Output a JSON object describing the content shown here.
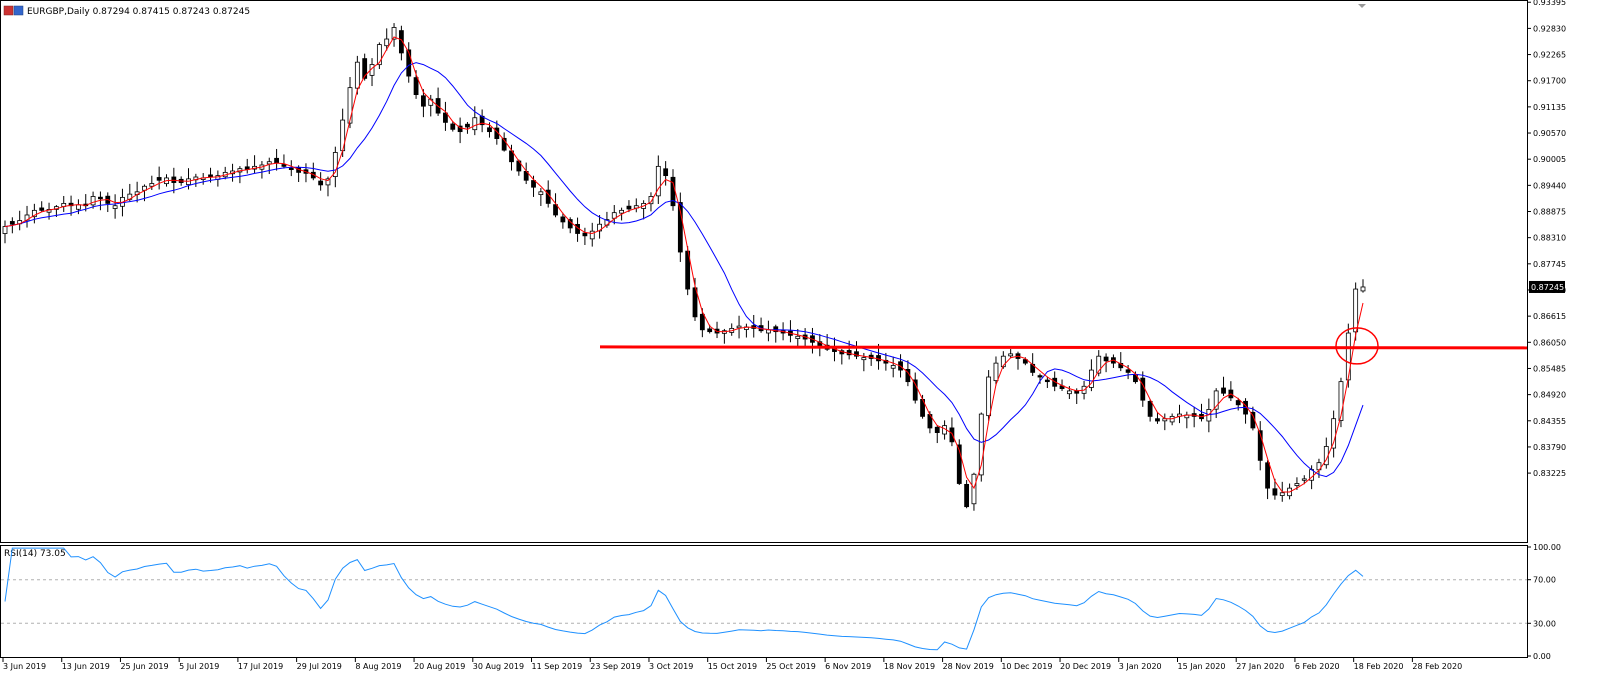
{
  "header": {
    "symbol_line": "EURGBP,Daily  0.87294 0.87415 0.87243 0.87245",
    "rsi_label": "RSI(14) 73.05"
  },
  "colors": {
    "ma_fast": "#ff0000",
    "ma_slow": "#0000ff",
    "rsi_line": "#1e90ff",
    "resistance": "#ff0000",
    "bull_body": "#ffffff",
    "bear_body": "#000000"
  },
  "chart_data": [
    {
      "type": "candlestick",
      "title": "EURGBP,Daily",
      "price_ticks": [
        "0.93395",
        "0.92830",
        "0.92265",
        "0.91700",
        "0.91135",
        "0.90570",
        "0.90005",
        "0.89440",
        "0.88875",
        "0.88310",
        "0.87745",
        "0.87180",
        "0.86615",
        "0.86050",
        "0.85485",
        "0.84920",
        "0.84355",
        "0.83790",
        "0.83225"
      ],
      "ylim": [
        0.8178,
        0.934
      ],
      "last_price": "0.87245",
      "date_labels": [
        "3 Jun 2019",
        "13 Jun 2019",
        "25 Jun 2019",
        "5 Jul 2019",
        "17 Jul 2019",
        "29 Jul 2019",
        "8 Aug 2019",
        "20 Aug 2019",
        "30 Aug 2019",
        "11 Sep 2019",
        "23 Sep 2019",
        "3 Oct 2019",
        "15 Oct 2019",
        "25 Oct 2019",
        "6 Nov 2019",
        "18 Nov 2019",
        "28 Nov 2019",
        "10 Dec 2019",
        "20 Dec 2019",
        "3 Jan 2020",
        "15 Jan 2020",
        "27 Jan 2020",
        "6 Feb 2020",
        "18 Feb 2020",
        "28 Feb 2020"
      ],
      "closes_approx": [
        0.8855,
        0.886,
        0.8868,
        0.888,
        0.889,
        0.889,
        0.8892,
        0.8898,
        0.8905,
        0.89,
        0.8902,
        0.89,
        0.892,
        0.8915,
        0.8905,
        0.89,
        0.8918,
        0.8925,
        0.893,
        0.8942,
        0.8948,
        0.8955,
        0.896,
        0.895,
        0.895,
        0.8958,
        0.8962,
        0.896,
        0.8962,
        0.8965,
        0.8972,
        0.8975,
        0.898,
        0.8978,
        0.8985,
        0.8988,
        0.8995,
        0.8993,
        0.8985,
        0.8978,
        0.8972,
        0.897,
        0.896,
        0.8945,
        0.8958,
        0.9015,
        0.9085,
        0.9155,
        0.921,
        0.9175,
        0.9205,
        0.9248,
        0.926,
        0.9285,
        0.923,
        0.918,
        0.914,
        0.9115,
        0.913,
        0.91,
        0.908,
        0.9065,
        0.906,
        0.907,
        0.909,
        0.9075,
        0.906,
        0.9045,
        0.902,
        0.8995,
        0.8975,
        0.8955,
        0.894,
        0.893,
        0.8905,
        0.888,
        0.8865,
        0.8852,
        0.884,
        0.8835,
        0.8845,
        0.886,
        0.887,
        0.8885,
        0.889,
        0.8893,
        0.89,
        0.8905,
        0.892,
        0.8985,
        0.8965,
        0.89,
        0.88,
        0.872,
        0.866,
        0.8632,
        0.8628,
        0.8625,
        0.863,
        0.8635,
        0.864,
        0.8638,
        0.8635,
        0.863,
        0.8632,
        0.8628,
        0.8625,
        0.862,
        0.8618,
        0.8612,
        0.8605,
        0.8598,
        0.859,
        0.8585,
        0.858,
        0.8578,
        0.8575,
        0.8572,
        0.857,
        0.8565,
        0.856,
        0.8555,
        0.8545,
        0.852,
        0.848,
        0.8445,
        0.842,
        0.841,
        0.8425,
        0.839,
        0.83,
        0.825,
        0.832,
        0.845,
        0.853,
        0.856,
        0.8575,
        0.858,
        0.857,
        0.856,
        0.854,
        0.853,
        0.852,
        0.851,
        0.8505,
        0.85,
        0.8495,
        0.851,
        0.8545,
        0.8575,
        0.8565,
        0.856,
        0.855,
        0.854,
        0.852,
        0.848,
        0.8445,
        0.8435,
        0.844,
        0.8445,
        0.845,
        0.8448,
        0.8445,
        0.844,
        0.846,
        0.85,
        0.8495,
        0.8485,
        0.847,
        0.845,
        0.842,
        0.835,
        0.829,
        0.8275,
        0.828,
        0.829,
        0.83,
        0.831,
        0.833,
        0.8345,
        0.838,
        0.844,
        0.852,
        0.8625,
        0.872,
        0.87245
      ],
      "rsi": {
        "label": "RSI(14) 73.05",
        "ticks": [
          "100.00",
          "70.00",
          "30.00",
          "0.00"
        ],
        "levels": [
          70,
          30
        ],
        "ylim": [
          0,
          100
        ],
        "current": 73.05
      },
      "annotations": {
        "resistance_level": 0.8595
      }
    }
  ]
}
